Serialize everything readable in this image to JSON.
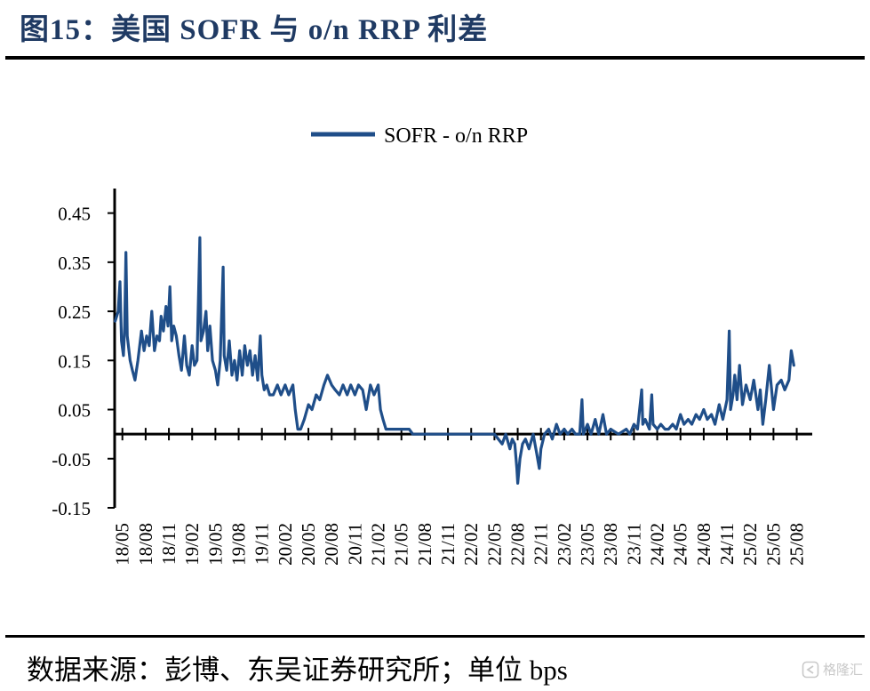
{
  "figure": {
    "title": "图15：美国 SOFR 与 o/n RRP 利差",
    "source_note": "数据来源：彭博、东吴证券研究所；单位 bps",
    "watermark": "格隆汇",
    "watermark_icon": "gelonghui-logo-icon"
  },
  "chart_data": {
    "type": "line",
    "legend": [
      "SOFR - o/n RRP"
    ],
    "legend_position": "top-center",
    "grid": false,
    "x_tick_labels": [
      "18/05",
      "18/08",
      "18/11",
      "19/02",
      "19/05",
      "19/08",
      "19/11",
      "20/02",
      "20/05",
      "20/08",
      "20/11",
      "21/02",
      "21/05",
      "21/08",
      "21/11",
      "22/02",
      "22/05",
      "22/08",
      "22/11",
      "23/02",
      "23/05",
      "23/08",
      "23/11",
      "24/02",
      "24/05",
      "24/08",
      "24/11",
      "25/02",
      "25/05",
      "25/08"
    ],
    "y_tick_labels": [
      "0.45",
      "0.35",
      "0.25",
      "0.15",
      "0.05",
      "-0.05",
      "-0.15"
    ],
    "ylim": [
      -0.15,
      0.5
    ],
    "xlim": [
      "2018-04",
      "2025-10"
    ],
    "series": [
      {
        "name": "SOFR - o/n RRP",
        "color": "#1f4e89",
        "points": [
          [
            "2018-04-03",
            0.23
          ],
          [
            "2018-04-15",
            0.25
          ],
          [
            "2018-04-22",
            0.31
          ],
          [
            "2018-04-28",
            0.19
          ],
          [
            "2018-05-05",
            0.16
          ],
          [
            "2018-05-10",
            0.22
          ],
          [
            "2018-05-15",
            0.37
          ],
          [
            "2018-05-20",
            0.2
          ],
          [
            "2018-06-01",
            0.15
          ],
          [
            "2018-06-10",
            0.13
          ],
          [
            "2018-06-20",
            0.11
          ],
          [
            "2018-07-01",
            0.15
          ],
          [
            "2018-07-15",
            0.21
          ],
          [
            "2018-07-25",
            0.17
          ],
          [
            "2018-08-05",
            0.2
          ],
          [
            "2018-08-15",
            0.18
          ],
          [
            "2018-08-25",
            0.25
          ],
          [
            "2018-09-05",
            0.17
          ],
          [
            "2018-09-15",
            0.2
          ],
          [
            "2018-09-25",
            0.19
          ],
          [
            "2018-10-01",
            0.24
          ],
          [
            "2018-10-10",
            0.21
          ],
          [
            "2018-10-20",
            0.26
          ],
          [
            "2018-10-28",
            0.22
          ],
          [
            "2018-11-05",
            0.3
          ],
          [
            "2018-11-12",
            0.19
          ],
          [
            "2018-11-20",
            0.22
          ],
          [
            "2018-11-30",
            0.2
          ],
          [
            "2018-12-10",
            0.16
          ],
          [
            "2018-12-20",
            0.13
          ],
          [
            "2019-01-01",
            0.2
          ],
          [
            "2019-01-10",
            0.14
          ],
          [
            "2019-01-20",
            0.12
          ],
          [
            "2019-02-01",
            0.18
          ],
          [
            "2019-02-10",
            0.14
          ],
          [
            "2019-02-20",
            0.15
          ],
          [
            "2019-03-01",
            0.4
          ],
          [
            "2019-03-05",
            0.19
          ],
          [
            "2019-03-15",
            0.21
          ],
          [
            "2019-03-25",
            0.25
          ],
          [
            "2019-04-01",
            0.17
          ],
          [
            "2019-04-10",
            0.22
          ],
          [
            "2019-04-20",
            0.15
          ],
          [
            "2019-05-01",
            0.13
          ],
          [
            "2019-05-10",
            0.1
          ],
          [
            "2019-05-20",
            0.15
          ],
          [
            "2019-06-01",
            0.34
          ],
          [
            "2019-06-05",
            0.16
          ],
          [
            "2019-06-15",
            0.13
          ],
          [
            "2019-06-25",
            0.19
          ],
          [
            "2019-07-05",
            0.12
          ],
          [
            "2019-07-15",
            0.15
          ],
          [
            "2019-07-25",
            0.11
          ],
          [
            "2019-08-05",
            0.17
          ],
          [
            "2019-08-15",
            0.12
          ],
          [
            "2019-08-25",
            0.18
          ],
          [
            "2019-09-05",
            0.14
          ],
          [
            "2019-09-15",
            0.17
          ],
          [
            "2019-09-25",
            0.12
          ],
          [
            "2019-10-05",
            0.16
          ],
          [
            "2019-10-15",
            0.11
          ],
          [
            "2019-10-25",
            0.2
          ],
          [
            "2019-11-01",
            0.12
          ],
          [
            "2019-11-10",
            0.09
          ],
          [
            "2019-11-20",
            0.1
          ],
          [
            "2019-12-01",
            0.08
          ],
          [
            "2019-12-15",
            0.08
          ],
          [
            "2020-01-01",
            0.1
          ],
          [
            "2020-01-15",
            0.08
          ],
          [
            "2020-02-01",
            0.1
          ],
          [
            "2020-02-15",
            0.08
          ],
          [
            "2020-03-01",
            0.1
          ],
          [
            "2020-03-10",
            0.05
          ],
          [
            "2020-03-20",
            0.01
          ],
          [
            "2020-04-01",
            0.01
          ],
          [
            "2020-04-15",
            0.03
          ],
          [
            "2020-05-01",
            0.06
          ],
          [
            "2020-05-15",
            0.05
          ],
          [
            "2020-06-01",
            0.08
          ],
          [
            "2020-06-15",
            0.07
          ],
          [
            "2020-07-01",
            0.1
          ],
          [
            "2020-07-15",
            0.12
          ],
          [
            "2020-08-01",
            0.1
          ],
          [
            "2020-08-15",
            0.09
          ],
          [
            "2020-09-01",
            0.08
          ],
          [
            "2020-09-15",
            0.1
          ],
          [
            "2020-10-01",
            0.08
          ],
          [
            "2020-10-15",
            0.1
          ],
          [
            "2020-11-01",
            0.08
          ],
          [
            "2020-11-15",
            0.1
          ],
          [
            "2020-12-01",
            0.09
          ],
          [
            "2020-12-15",
            0.05
          ],
          [
            "2021-01-01",
            0.1
          ],
          [
            "2021-01-15",
            0.08
          ],
          [
            "2021-02-01",
            0.1
          ],
          [
            "2021-02-10",
            0.05
          ],
          [
            "2021-02-20",
            0.03
          ],
          [
            "2021-03-01",
            0.01
          ],
          [
            "2021-04-01",
            0.01
          ],
          [
            "2021-06-01",
            0.01
          ],
          [
            "2021-06-15",
            0.0
          ],
          [
            "2022-05-01",
            0.0
          ],
          [
            "2022-06-01",
            -0.02
          ],
          [
            "2022-06-15",
            0.0
          ],
          [
            "2022-07-01",
            -0.03
          ],
          [
            "2022-07-10",
            -0.01
          ],
          [
            "2022-07-20",
            -0.02
          ],
          [
            "2022-07-28",
            -0.07
          ],
          [
            "2022-08-01",
            -0.1
          ],
          [
            "2022-08-10",
            -0.05
          ],
          [
            "2022-08-20",
            -0.02
          ],
          [
            "2022-09-01",
            -0.01
          ],
          [
            "2022-09-15",
            -0.03
          ],
          [
            "2022-10-01",
            0.0
          ],
          [
            "2022-10-15",
            -0.04
          ],
          [
            "2022-10-25",
            -0.07
          ],
          [
            "2022-11-01",
            -0.03
          ],
          [
            "2022-11-15",
            0.0
          ],
          [
            "2022-12-01",
            0.01
          ],
          [
            "2022-12-15",
            -0.01
          ],
          [
            "2023-01-01",
            0.02
          ],
          [
            "2023-01-15",
            0.0
          ],
          [
            "2023-02-01",
            0.01
          ],
          [
            "2023-02-15",
            0.0
          ],
          [
            "2023-03-01",
            0.01
          ],
          [
            "2023-03-15",
            0.0
          ],
          [
            "2023-04-01",
            0.0
          ],
          [
            "2023-04-10",
            0.07
          ],
          [
            "2023-04-15",
            0.0
          ],
          [
            "2023-05-01",
            0.02
          ],
          [
            "2023-05-15",
            0.0
          ],
          [
            "2023-06-01",
            0.03
          ],
          [
            "2023-06-15",
            0.0
          ],
          [
            "2023-07-01",
            0.04
          ],
          [
            "2023-07-15",
            0.0
          ],
          [
            "2023-08-01",
            0.01
          ],
          [
            "2023-09-01",
            0.0
          ],
          [
            "2023-10-01",
            0.01
          ],
          [
            "2023-10-15",
            0.0
          ],
          [
            "2023-11-01",
            0.02
          ],
          [
            "2023-11-15",
            0.01
          ],
          [
            "2023-12-01",
            0.09
          ],
          [
            "2023-12-05",
            0.02
          ],
          [
            "2023-12-15",
            0.03
          ],
          [
            "2024-01-01",
            0.01
          ],
          [
            "2024-01-10",
            0.08
          ],
          [
            "2024-01-15",
            0.02
          ],
          [
            "2024-02-01",
            0.01
          ],
          [
            "2024-02-15",
            0.02
          ],
          [
            "2024-03-01",
            0.01
          ],
          [
            "2024-03-15",
            0.01
          ],
          [
            "2024-04-01",
            0.02
          ],
          [
            "2024-04-15",
            0.01
          ],
          [
            "2024-05-01",
            0.04
          ],
          [
            "2024-05-15",
            0.02
          ],
          [
            "2024-06-01",
            0.03
          ],
          [
            "2024-06-15",
            0.02
          ],
          [
            "2024-07-01",
            0.04
          ],
          [
            "2024-07-15",
            0.03
          ],
          [
            "2024-08-01",
            0.05
          ],
          [
            "2024-08-15",
            0.03
          ],
          [
            "2024-09-01",
            0.04
          ],
          [
            "2024-09-15",
            0.02
          ],
          [
            "2024-10-01",
            0.06
          ],
          [
            "2024-10-15",
            0.03
          ],
          [
            "2024-11-01",
            0.07
          ],
          [
            "2024-11-10",
            0.21
          ],
          [
            "2024-11-15",
            0.05
          ],
          [
            "2024-11-25",
            0.08
          ],
          [
            "2024-12-01",
            0.12
          ],
          [
            "2024-12-10",
            0.07
          ],
          [
            "2024-12-20",
            0.14
          ],
          [
            "2025-01-01",
            0.06
          ],
          [
            "2025-01-15",
            0.1
          ],
          [
            "2025-02-01",
            0.07
          ],
          [
            "2025-02-15",
            0.11
          ],
          [
            "2025-03-01",
            0.05
          ],
          [
            "2025-03-10",
            0.09
          ],
          [
            "2025-03-20",
            0.02
          ],
          [
            "2025-04-01",
            0.07
          ],
          [
            "2025-04-15",
            0.14
          ],
          [
            "2025-05-01",
            0.05
          ],
          [
            "2025-05-15",
            0.1
          ],
          [
            "2025-06-01",
            0.11
          ],
          [
            "2025-06-15",
            0.09
          ],
          [
            "2025-07-01",
            0.11
          ],
          [
            "2025-07-10",
            0.17
          ],
          [
            "2025-07-20",
            0.14
          ]
        ]
      }
    ]
  }
}
